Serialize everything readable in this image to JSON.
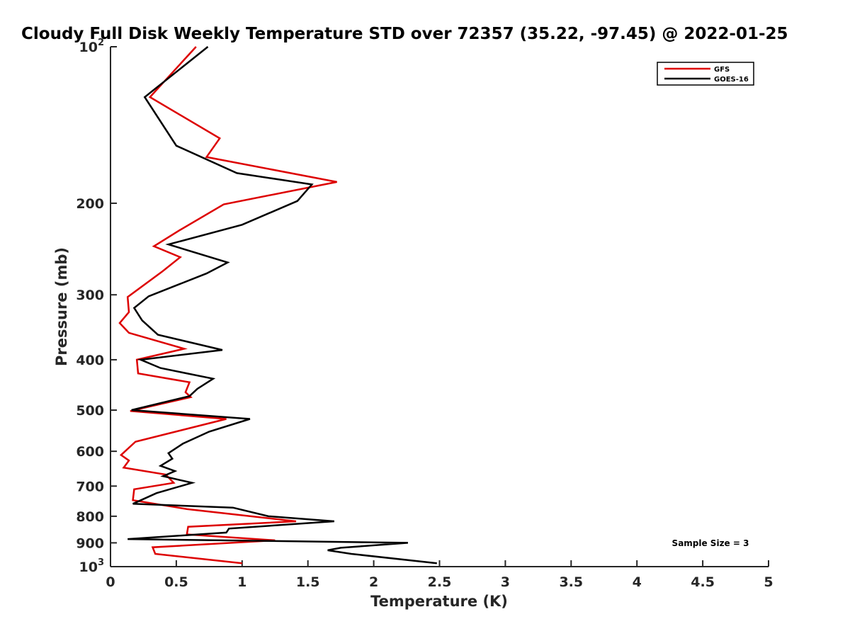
{
  "chart_data": {
    "type": "line",
    "title": "Cloudy Full Disk Weekly Temperature STD over 72357 (35.22, -97.45) @ 2022-01-25",
    "xlabel": "Temperature (K)",
    "ylabel": "Pressure (mb)",
    "xlim": [
      0,
      5
    ],
    "ylim": [
      100,
      1000
    ],
    "y_scale": "log",
    "y_reversed": true,
    "grid": false,
    "legend_position": "top-right",
    "x_ticks": [
      {
        "value": 0,
        "label": "0"
      },
      {
        "value": 0.5,
        "label": "0.5"
      },
      {
        "value": 1,
        "label": "1"
      },
      {
        "value": 1.5,
        "label": "1.5"
      },
      {
        "value": 2,
        "label": "2"
      },
      {
        "value": 2.5,
        "label": "2.5"
      },
      {
        "value": 3,
        "label": "3"
      },
      {
        "value": 3.5,
        "label": "3.5"
      },
      {
        "value": 4,
        "label": "4"
      },
      {
        "value": 4.5,
        "label": "4.5"
      },
      {
        "value": 5,
        "label": "5"
      }
    ],
    "y_ticks": [
      {
        "value": 100,
        "base": "10",
        "exp": "2"
      },
      {
        "value": 200,
        "base": "200",
        "exp": ""
      },
      {
        "value": 300,
        "base": "300",
        "exp": ""
      },
      {
        "value": 400,
        "base": "400",
        "exp": ""
      },
      {
        "value": 500,
        "base": "500",
        "exp": ""
      },
      {
        "value": 600,
        "base": "600",
        "exp": ""
      },
      {
        "value": 700,
        "base": "700",
        "exp": ""
      },
      {
        "value": 800,
        "base": "800",
        "exp": ""
      },
      {
        "value": 900,
        "base": "900",
        "exp": ""
      },
      {
        "value": 1000,
        "base": "10",
        "exp": "3"
      }
    ],
    "annotation": "Sample Size = 3",
    "series": [
      {
        "name": "GFS",
        "color": "#dd0000",
        "points": [
          [
            0.65,
            100
          ],
          [
            0.3,
            125
          ],
          [
            0.83,
            150
          ],
          [
            0.73,
            163
          ],
          [
            1.72,
            182
          ],
          [
            0.86,
            201
          ],
          [
            0.53,
            225
          ],
          [
            0.33,
            242
          ],
          [
            0.53,
            254
          ],
          [
            0.39,
            271
          ],
          [
            0.13,
            303
          ],
          [
            0.14,
            324
          ],
          [
            0.07,
            340
          ],
          [
            0.14,
            355
          ],
          [
            0.56,
            381
          ],
          [
            0.2,
            400
          ],
          [
            0.21,
            425
          ],
          [
            0.6,
            442
          ],
          [
            0.57,
            462
          ],
          [
            0.61,
            472
          ],
          [
            0.15,
            502
          ],
          [
            0.88,
            520
          ],
          [
            0.19,
            575
          ],
          [
            0.08,
            610
          ],
          [
            0.14,
            625
          ],
          [
            0.1,
            645
          ],
          [
            0.42,
            665
          ],
          [
            0.48,
            690
          ],
          [
            0.18,
            710
          ],
          [
            0.17,
            745
          ],
          [
            0.58,
            775
          ],
          [
            1.41,
            818
          ],
          [
            0.59,
            838
          ],
          [
            0.58,
            867
          ],
          [
            1.25,
            890
          ],
          [
            0.32,
            918
          ],
          [
            0.34,
            945
          ],
          [
            1.0,
            985
          ]
        ]
      },
      {
        "name": "GOES-16",
        "color": "#000000",
        "points": [
          [
            0.74,
            100
          ],
          [
            0.26,
            125
          ],
          [
            0.5,
            155
          ],
          [
            0.96,
            175
          ],
          [
            1.53,
            184
          ],
          [
            1.42,
            198
          ],
          [
            1.0,
            220
          ],
          [
            0.44,
            240
          ],
          [
            0.89,
            260
          ],
          [
            0.73,
            273
          ],
          [
            0.29,
            302
          ],
          [
            0.18,
            318
          ],
          [
            0.24,
            336
          ],
          [
            0.36,
            358
          ],
          [
            0.85,
            383
          ],
          [
            0.23,
            400
          ],
          [
            0.38,
            415
          ],
          [
            0.78,
            435
          ],
          [
            0.66,
            455
          ],
          [
            0.6,
            470
          ],
          [
            0.16,
            500
          ],
          [
            1.06,
            520
          ],
          [
            0.75,
            550
          ],
          [
            0.55,
            580
          ],
          [
            0.44,
            605
          ],
          [
            0.47,
            620
          ],
          [
            0.38,
            640
          ],
          [
            0.49,
            655
          ],
          [
            0.4,
            670
          ],
          [
            0.62,
            690
          ],
          [
            0.35,
            722
          ],
          [
            0.17,
            757
          ],
          [
            0.93,
            770
          ],
          [
            1.2,
            800
          ],
          [
            1.7,
            818
          ],
          [
            0.9,
            845
          ],
          [
            0.88,
            860
          ],
          [
            0.13,
            885
          ],
          [
            2.26,
            900
          ],
          [
            1.75,
            920
          ],
          [
            1.65,
            930
          ],
          [
            1.83,
            945
          ],
          [
            2.48,
            985
          ]
        ]
      }
    ]
  }
}
